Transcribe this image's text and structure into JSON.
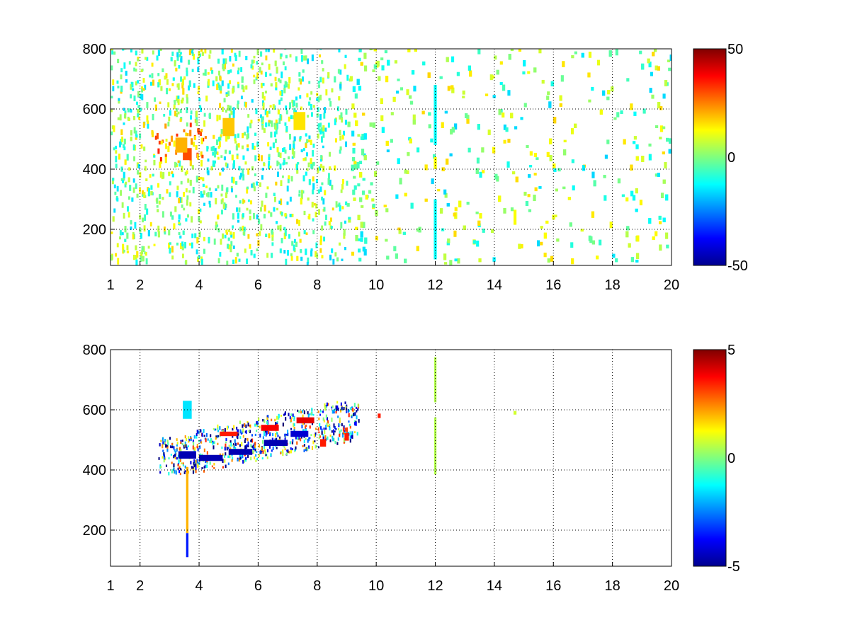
{
  "chart_data": [
    {
      "type": "heatmap",
      "title": "",
      "xlabel": "",
      "ylabel": "",
      "xlim": [
        1,
        20
      ],
      "ylim": [
        80,
        800
      ],
      "x_ticks": [
        1,
        2,
        4,
        6,
        8,
        10,
        12,
        14,
        16,
        18,
        20
      ],
      "x_tick_labels": [
        "1",
        "2",
        "4",
        "6",
        "8",
        "10",
        "12",
        "14",
        "16",
        "18",
        "20"
      ],
      "y_ticks": [
        200,
        400,
        600,
        800
      ],
      "y_tick_labels": [
        "200",
        "400",
        "600",
        "800"
      ],
      "grid": true,
      "colormap": "jet",
      "colorbar": {
        "min": -50,
        "max": 50,
        "ticks": [
          50,
          0,
          -50
        ],
        "tick_labels": [
          "50",
          "0",
          "-50"
        ]
      },
      "cells": [
        {
          "x": 3.6,
          "y": 450,
          "w": 0.3,
          "h": 40,
          "value": 30
        },
        {
          "x": 3.4,
          "y": 480,
          "w": 0.4,
          "h": 50,
          "value": 20
        },
        {
          "x": 5.0,
          "y": 540,
          "w": 0.4,
          "h": 60,
          "value": 18
        },
        {
          "x": 7.4,
          "y": 560,
          "w": 0.4,
          "h": 60,
          "value": 15
        },
        {
          "x": 12.0,
          "y": 580,
          "w": 0.1,
          "h": 200,
          "value": -12
        },
        {
          "x": 12.0,
          "y": 420,
          "w": 0.1,
          "h": 40,
          "value": 12
        },
        {
          "x": 12.0,
          "y": 200,
          "w": 0.1,
          "h": 200,
          "value": -12
        },
        {
          "x": 14.7,
          "y": 240,
          "w": 0.1,
          "h": 50,
          "value": 12
        }
      ]
    },
    {
      "type": "heatmap",
      "title": "",
      "xlabel": "",
      "ylabel": "",
      "xlim": [
        1,
        20
      ],
      "ylim": [
        80,
        800
      ],
      "x_ticks": [
        1,
        2,
        4,
        6,
        8,
        10,
        12,
        14,
        16,
        18,
        20
      ],
      "x_tick_labels": [
        "1",
        "2",
        "4",
        "6",
        "8",
        "10",
        "12",
        "14",
        "16",
        "18",
        "20"
      ],
      "y_ticks": [
        200,
        400,
        600,
        800
      ],
      "y_tick_labels": [
        "200",
        "400",
        "600",
        "800"
      ],
      "grid": true,
      "colormap": "jet",
      "colorbar": {
        "min": -5,
        "max": 5,
        "ticks": [
          5,
          0,
          -5
        ],
        "tick_labels": [
          "5",
          "0",
          "-5"
        ]
      },
      "cells": [
        {
          "x": 3.6,
          "y": 450,
          "w": 0.6,
          "h": 25,
          "value": -4.5
        },
        {
          "x": 4.4,
          "y": 440,
          "w": 0.8,
          "h": 20,
          "value": -4.5
        },
        {
          "x": 5.4,
          "y": 460,
          "w": 0.8,
          "h": 20,
          "value": -4.5
        },
        {
          "x": 6.6,
          "y": 490,
          "w": 0.8,
          "h": 20,
          "value": -4.5
        },
        {
          "x": 7.4,
          "y": 520,
          "w": 0.6,
          "h": 20,
          "value": -4.2
        },
        {
          "x": 5.0,
          "y": 520,
          "w": 0.6,
          "h": 15,
          "value": 3.5
        },
        {
          "x": 6.4,
          "y": 540,
          "w": 0.6,
          "h": 20,
          "value": 3.8
        },
        {
          "x": 7.6,
          "y": 565,
          "w": 0.6,
          "h": 20,
          "value": 4.0
        },
        {
          "x": 9.0,
          "y": 510,
          "w": 0.15,
          "h": 25,
          "value": 3.5
        },
        {
          "x": 8.2,
          "y": 490,
          "w": 0.2,
          "h": 25,
          "value": 3.5
        },
        {
          "x": 3.6,
          "y": 600,
          "w": 0.3,
          "h": 60,
          "value": -1.5
        },
        {
          "x": 3.6,
          "y": 300,
          "w": 0.08,
          "h": 220,
          "value": 2.0
        },
        {
          "x": 3.6,
          "y": 150,
          "w": 0.08,
          "h": 80,
          "value": -3.5
        },
        {
          "x": 12.0,
          "y": 700,
          "w": 0.08,
          "h": 150,
          "value": 0.5
        },
        {
          "x": 12.0,
          "y": 480,
          "w": 0.08,
          "h": 190,
          "value": 0.5
        },
        {
          "x": 10.1,
          "y": 580,
          "w": 0.1,
          "h": 15,
          "value": 3.5
        },
        {
          "x": 14.7,
          "y": 590,
          "w": 0.1,
          "h": 12,
          "value": 0.8
        }
      ]
    }
  ]
}
